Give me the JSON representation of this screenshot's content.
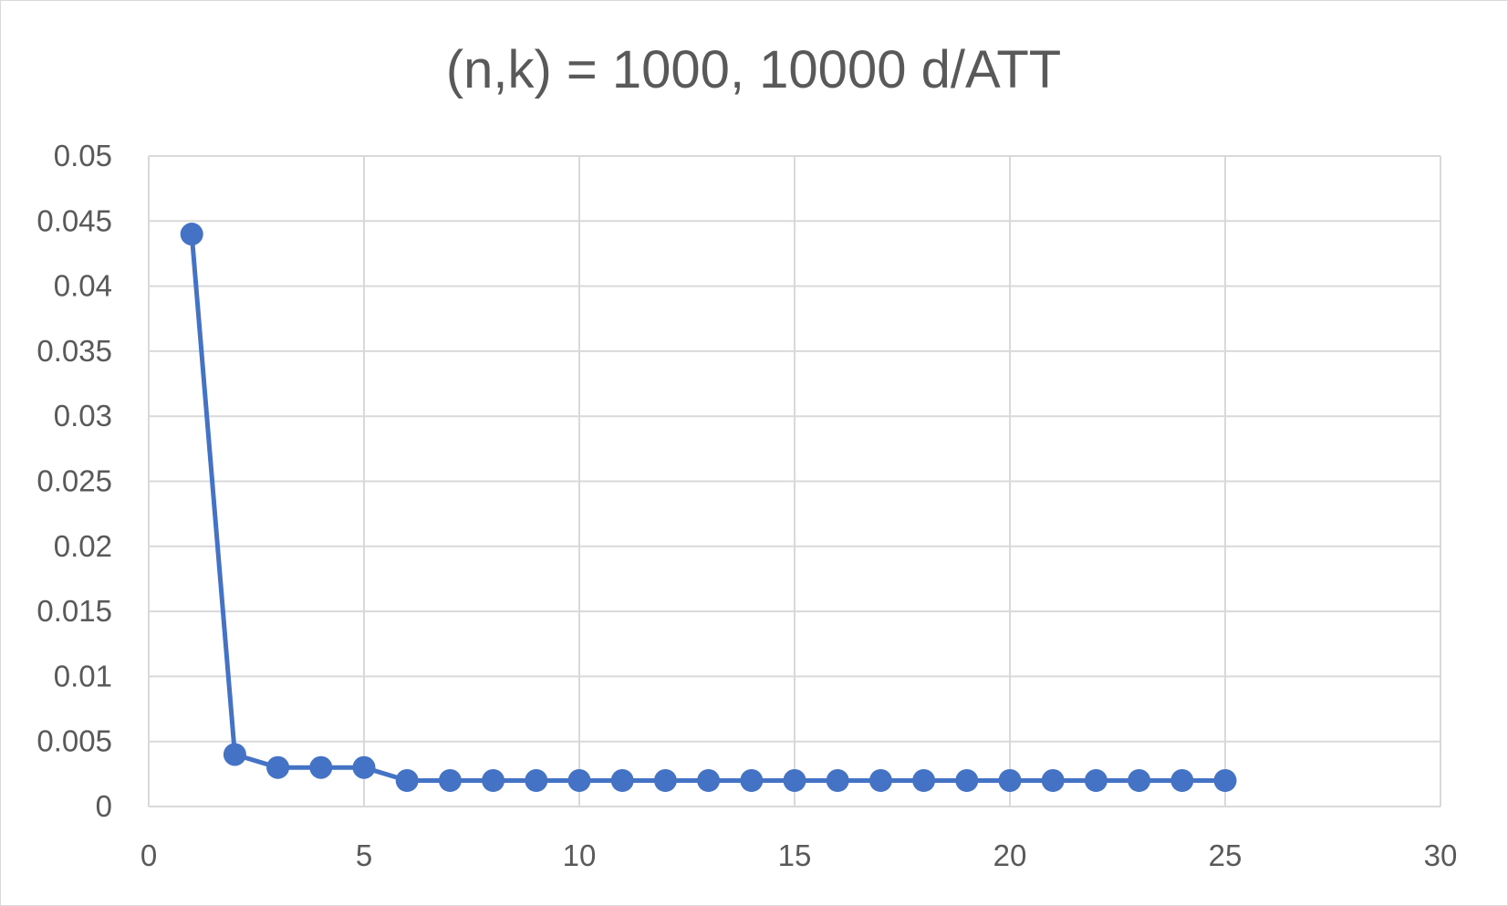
{
  "chart_data": {
    "type": "scatter",
    "title": "(n,k) = 1000, 10000 d/ATT",
    "xlabel": "",
    "ylabel": "",
    "xlim": [
      0,
      30
    ],
    "ylim": [
      0,
      0.05
    ],
    "x_ticks": [
      0,
      5,
      10,
      15,
      20,
      25,
      30
    ],
    "y_ticks": [
      0,
      0.005,
      0.01,
      0.015,
      0.02,
      0.025,
      0.03,
      0.035,
      0.04,
      0.045,
      0.05
    ],
    "grid": true,
    "legend": "none",
    "series": [
      {
        "color": "#4472c4",
        "line": true,
        "markers": true,
        "x": [
          1,
          2,
          3,
          4,
          5,
          6,
          7,
          8,
          9,
          10,
          11,
          12,
          13,
          14,
          15,
          16,
          17,
          18,
          19,
          20,
          21,
          22,
          23,
          24,
          25
        ],
        "y": [
          0.044,
          0.004,
          0.003,
          0.003,
          0.003,
          0.002,
          0.002,
          0.002,
          0.002,
          0.002,
          0.002,
          0.002,
          0.002,
          0.002,
          0.002,
          0.002,
          0.002,
          0.002,
          0.002,
          0.002,
          0.002,
          0.002,
          0.002,
          0.002,
          0.002
        ]
      }
    ]
  }
}
